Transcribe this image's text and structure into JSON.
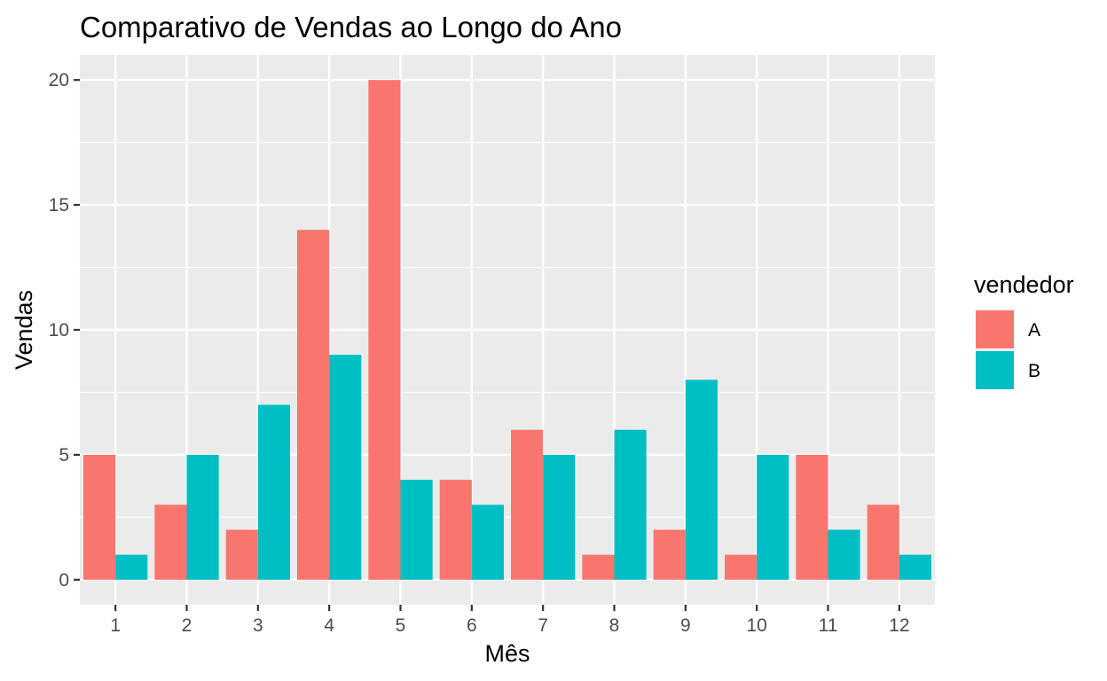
{
  "chart_data": {
    "type": "bar",
    "title": "Comparativo de Vendas ao Longo do Ano",
    "xlabel": "Mês",
    "ylabel": "Vendas",
    "categories": [
      "1",
      "2",
      "3",
      "4",
      "5",
      "6",
      "7",
      "8",
      "9",
      "10",
      "11",
      "12"
    ],
    "series": [
      {
        "name": "A",
        "color": "#F8766D",
        "values": [
          5,
          3,
          2,
          14,
          20,
          4,
          6,
          1,
          2,
          1,
          5,
          3
        ]
      },
      {
        "name": "B",
        "color": "#00BFC4",
        "values": [
          1,
          5,
          7,
          9,
          4,
          3,
          5,
          6,
          8,
          5,
          2,
          1
        ]
      }
    ],
    "ylim": [
      -1,
      21
    ],
    "yticks": [
      0,
      5,
      10,
      15,
      20
    ],
    "legend": {
      "title": "vendedor",
      "position": "right"
    },
    "grid": true,
    "panel_background": "#EBEBEB",
    "grid_color": "#FFFFFF"
  }
}
